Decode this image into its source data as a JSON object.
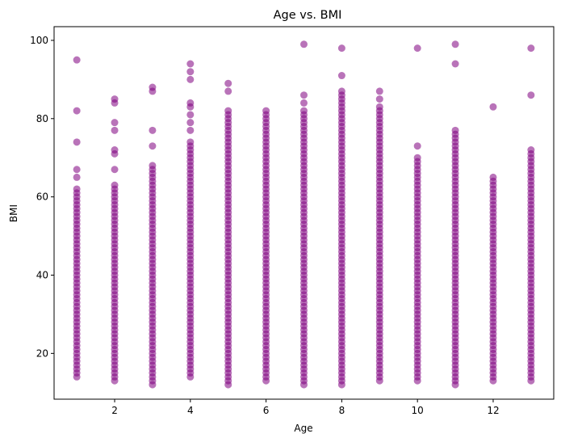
{
  "chart_data": {
    "type": "scatter",
    "title": "Age vs. BMI",
    "xlabel": "Age",
    "ylabel": "BMI",
    "xlim": [
      0.4,
      13.6
    ],
    "ylim": [
      8.3,
      103.5
    ],
    "xticks": [
      2,
      4,
      6,
      8,
      10,
      12
    ],
    "yticks": [
      20,
      40,
      60,
      80,
      100
    ],
    "grid": false,
    "legend": "none",
    "marker_color": "#800080",
    "marker_alpha": 0.55,
    "series": [
      {
        "columns": [
          {
            "x": 1,
            "min": 14,
            "max": 62,
            "outliers": [
              65,
              67,
              74,
              82,
              95
            ]
          },
          {
            "x": 2,
            "min": 13,
            "max": 63,
            "outliers": [
              67,
              71,
              72,
              77,
              79,
              84,
              85
            ]
          },
          {
            "x": 3,
            "min": 12,
            "max": 68,
            "outliers": [
              73,
              77,
              87,
              88
            ]
          },
          {
            "x": 4,
            "min": 14,
            "max": 74,
            "outliers": [
              77,
              79,
              81,
              83,
              84,
              90,
              92,
              94
            ]
          },
          {
            "x": 5,
            "min": 12,
            "max": 82,
            "outliers": [
              87,
              89
            ]
          },
          {
            "x": 6,
            "min": 13,
            "max": 80,
            "outliers": [
              81,
              82
            ]
          },
          {
            "x": 7,
            "min": 12,
            "max": 82,
            "outliers": [
              84,
              86,
              99
            ]
          },
          {
            "x": 8,
            "min": 12,
            "max": 87,
            "outliers": [
              91,
              98
            ]
          },
          {
            "x": 9,
            "min": 13,
            "max": 83,
            "outliers": [
              85,
              87
            ]
          },
          {
            "x": 10,
            "min": 13,
            "max": 70,
            "outliers": [
              73,
              98
            ]
          },
          {
            "x": 11,
            "min": 12,
            "max": 77,
            "outliers": [
              94,
              99
            ]
          },
          {
            "x": 12,
            "min": 13,
            "max": 65,
            "outliers": [
              83
            ]
          },
          {
            "x": 13,
            "min": 13,
            "max": 72,
            "outliers": [
              86,
              98
            ]
          }
        ]
      }
    ]
  }
}
